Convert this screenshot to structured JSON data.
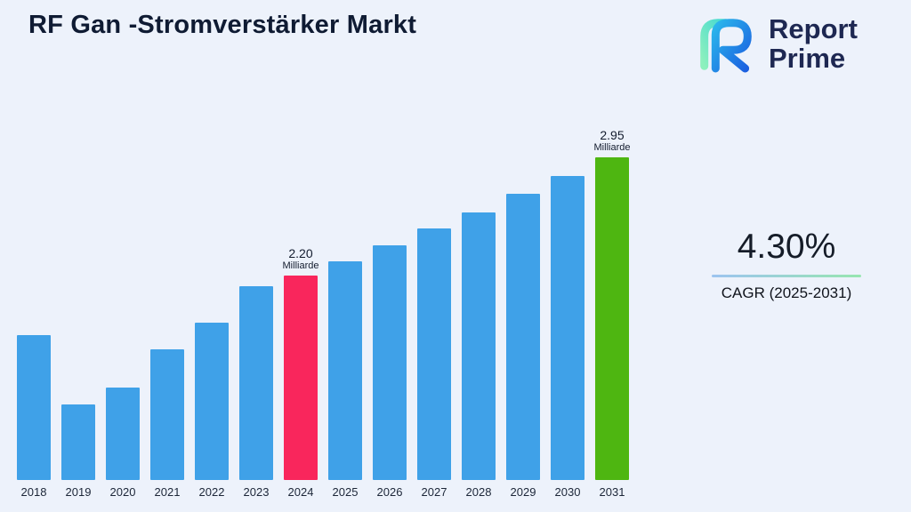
{
  "page": {
    "title": "RF Gan -Stromverstärker Markt",
    "background": "#edf2fb"
  },
  "logo": {
    "line1": "Report",
    "line2": "Prime"
  },
  "cagr": {
    "value": "4.30%",
    "label": "CAGR (2025-2031)"
  },
  "chart_data": {
    "type": "bar",
    "title": "RF Gan -Stromverstärker Markt",
    "unit": "Milliarde",
    "categories": [
      "2018",
      "2019",
      "2020",
      "2021",
      "2022",
      "2023",
      "2024",
      "2025",
      "2026",
      "2027",
      "2028",
      "2029",
      "2030",
      "2031"
    ],
    "values": [
      1.82,
      1.38,
      1.49,
      1.73,
      1.9,
      2.13,
      2.2,
      2.29,
      2.39,
      2.5,
      2.6,
      2.72,
      2.83,
      2.95
    ],
    "annotations": [
      {
        "category": "2024",
        "value": "2.20",
        "unit": "Milliarde"
      },
      {
        "category": "2031",
        "value": "2.95",
        "unit": "Milliarde"
      }
    ],
    "bar_colors": {
      "default": "#3fa1e8",
      "2024": "#f9265c",
      "2031": "#4eb611"
    },
    "ylim_display": [
      0.9,
      3.3
    ],
    "grid": false,
    "legend": false,
    "xlabel": "",
    "ylabel": ""
  }
}
